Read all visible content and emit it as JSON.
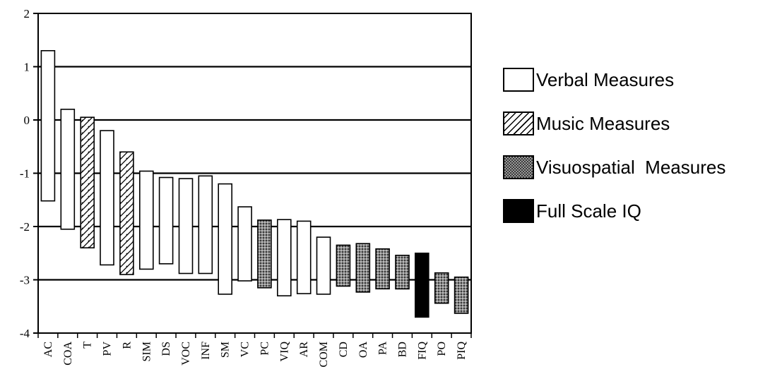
{
  "chart_data": {
    "type": "bar",
    "subtype": "floating-range",
    "title": "",
    "xlabel": "",
    "ylabel": "",
    "ylim": [
      -4,
      2
    ],
    "yticks": [
      2,
      1,
      0,
      -1,
      -2,
      -3,
      -4
    ],
    "ytick_labels": [
      "2",
      "1",
      "0",
      "-1",
      "-2",
      "-3",
      "-4"
    ],
    "grid": "horizontal at integer ticks",
    "legend_position": "right",
    "categories": [
      "AC",
      "COA",
      "T",
      "PV",
      "R",
      "SIM",
      "DS",
      "VOC",
      "INF",
      "SM",
      "VC",
      "PC",
      "VIQ",
      "AR",
      "COM",
      "CD",
      "OA",
      "PA",
      "BD",
      "FIQ",
      "PO",
      "PIQ"
    ],
    "bars": [
      {
        "label": "AC",
        "high": 1.3,
        "low": -1.52,
        "group": "verbal"
      },
      {
        "label": "COA",
        "high": 0.2,
        "low": -2.05,
        "group": "verbal"
      },
      {
        "label": "T",
        "high": 0.05,
        "low": -2.4,
        "group": "music"
      },
      {
        "label": "PV",
        "high": -0.2,
        "low": -2.72,
        "group": "verbal"
      },
      {
        "label": "R",
        "high": -0.6,
        "low": -2.9,
        "group": "music"
      },
      {
        "label": "SIM",
        "high": -0.96,
        "low": -2.8,
        "group": "verbal"
      },
      {
        "label": "DS",
        "high": -1.08,
        "low": -2.7,
        "group": "verbal"
      },
      {
        "label": "VOC",
        "high": -1.1,
        "low": -2.88,
        "group": "verbal"
      },
      {
        "label": "INF",
        "high": -1.05,
        "low": -2.88,
        "group": "verbal"
      },
      {
        "label": "SM",
        "high": -1.2,
        "low": -3.27,
        "group": "verbal"
      },
      {
        "label": "VC",
        "high": -1.63,
        "low": -3.02,
        "group": "verbal"
      },
      {
        "label": "PC",
        "high": -1.88,
        "low": -3.15,
        "group": "visuospatial"
      },
      {
        "label": "VIQ",
        "high": -1.87,
        "low": -3.3,
        "group": "verbal"
      },
      {
        "label": "AR",
        "high": -1.9,
        "low": -3.26,
        "group": "verbal"
      },
      {
        "label": "COM",
        "high": -2.2,
        "low": -3.27,
        "group": "verbal"
      },
      {
        "label": "CD",
        "high": -2.35,
        "low": -3.12,
        "group": "visuospatial"
      },
      {
        "label": "OA",
        "high": -2.32,
        "low": -3.23,
        "group": "visuospatial"
      },
      {
        "label": "PA",
        "high": -2.42,
        "low": -3.17,
        "group": "visuospatial"
      },
      {
        "label": "BD",
        "high": -2.54,
        "low": -3.17,
        "group": "visuospatial"
      },
      {
        "label": "FIQ",
        "high": -2.5,
        "low": -3.7,
        "group": "fullscale"
      },
      {
        "label": "PO",
        "high": -2.87,
        "low": -3.44,
        "group": "visuospatial"
      },
      {
        "label": "PIQ",
        "high": -2.95,
        "low": -3.63,
        "group": "visuospatial"
      }
    ],
    "legend": [
      {
        "key": "verbal",
        "label": "Verbal Measures",
        "fill": "white"
      },
      {
        "key": "music",
        "label": "Music Measures",
        "fill": "hatch"
      },
      {
        "key": "visuospatial",
        "label": "Visuospatial  Measures",
        "fill": "stipple"
      },
      {
        "key": "fullscale",
        "label": "Full Scale IQ",
        "fill": "black"
      }
    ]
  },
  "colors": {
    "axis": "#000000",
    "bar_fill": "#ffffff",
    "stipple_base": "#8c8c8c",
    "stipple_dot": "#3a3a3a",
    "full_scale": "#000000"
  }
}
